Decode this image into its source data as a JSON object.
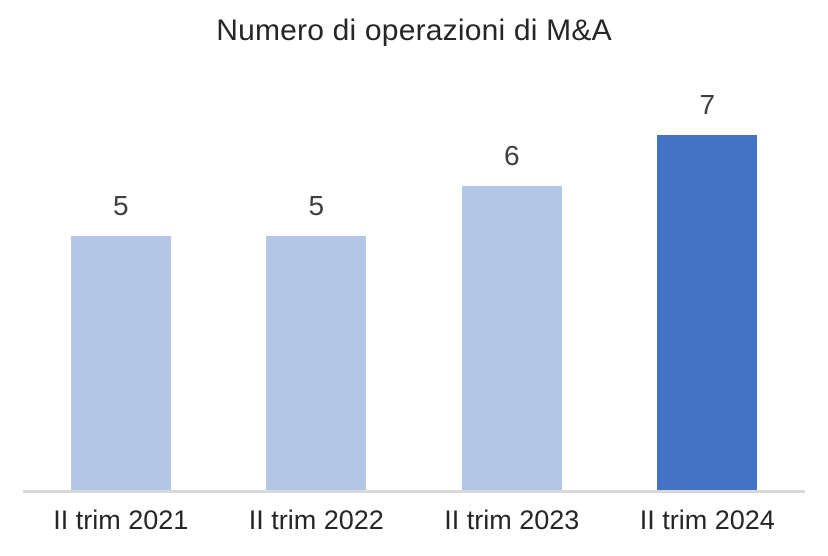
{
  "chart_data": {
    "type": "bar",
    "title": "Numero di operazioni di M&A",
    "categories": [
      "II trim 2021",
      "II trim 2022",
      "II trim 2023",
      "II trim 2024"
    ],
    "values": [
      5,
      5,
      6,
      7
    ],
    "data_labels": [
      "5",
      "5",
      "6",
      "7"
    ],
    "series": [
      {
        "name": "Numero di operazioni di M&A",
        "values": [
          5,
          5,
          6,
          7
        ]
      }
    ],
    "xlabel": "",
    "ylabel": "",
    "ylim": [
      0,
      7
    ],
    "grid": false,
    "legend": false,
    "bar_colors": [
      "#b4c7e7",
      "#b4c7e7",
      "#b4c7e7",
      "#4472c4"
    ],
    "colors": {
      "bar_default": "#b4c7e7",
      "bar_highlight": "#4472c4",
      "axis_line": "#d9d9d9",
      "title_text": "#262626",
      "label_text": "#404040"
    }
  }
}
